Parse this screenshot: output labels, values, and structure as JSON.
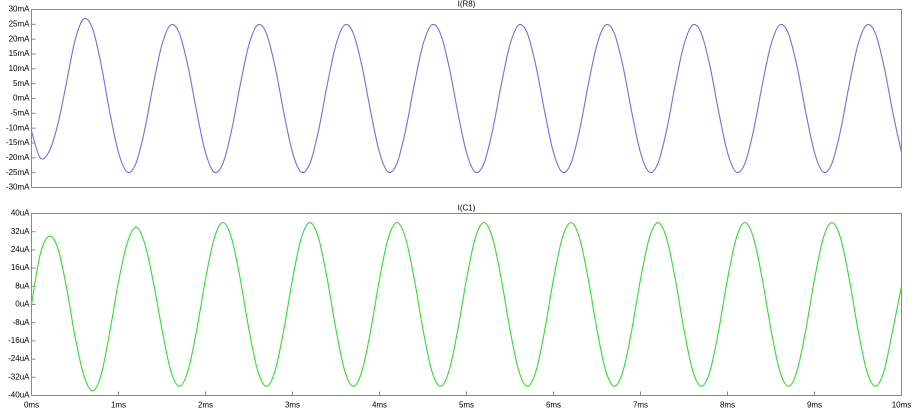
{
  "chart_data": [
    {
      "type": "line",
      "title": "I(R8)",
      "x": [
        0,
        0.1,
        0.2,
        0.3,
        0.4,
        0.5,
        0.6,
        0.7,
        0.8,
        0.9,
        1,
        1.1,
        1.2,
        1.3,
        1.4,
        1.5,
        1.6,
        1.7,
        1.8,
        1.9,
        2,
        2.1,
        2.2,
        2.3,
        2.4,
        2.5,
        2.6,
        2.7,
        2.8,
        2.9,
        3,
        3.1,
        3.2,
        3.3,
        3.4,
        3.5,
        3.6,
        3.7,
        3.8,
        3.9,
        4,
        4.1,
        4.2,
        4.3,
        4.4,
        4.5,
        4.6,
        4.7,
        4.8,
        4.9,
        5,
        5.1,
        5.2,
        5.3,
        5.4,
        5.5,
        5.6,
        5.7,
        5.8,
        5.9,
        6,
        6.1,
        6.2,
        6.3,
        6.4,
        6.5,
        6.6,
        6.7,
        6.8,
        6.9,
        7,
        7.1,
        7.2,
        7.3,
        7.4,
        7.5,
        7.6,
        7.7,
        7.8,
        7.9,
        8,
        8.1,
        8.2,
        8.3,
        8.4,
        8.5,
        8.6,
        8.7,
        8.8,
        8.9,
        9,
        9.1,
        9.2,
        9.3,
        9.4,
        9.5,
        9.6,
        9.7,
        9.8,
        9.9,
        10
      ],
      "series": [
        {
          "name": "I(R8)",
          "color": "#6f6fe8",
          "values": [
            -11,
            -20,
            -18,
            -9,
            5,
            19.6,
            26.8,
            23.7,
            11.5,
            -4.7,
            -18.2,
            -24.8,
            -21.9,
            -10.7,
            4.7,
            18.2,
            24.8,
            21.9,
            10.7,
            -4.7,
            -18.2,
            -24.8,
            -21.9,
            -10.7,
            4.7,
            18.2,
            24.8,
            21.9,
            10.7,
            -4.7,
            -18.2,
            -24.8,
            -21.9,
            -10.7,
            4.7,
            18.2,
            24.8,
            21.9,
            10.7,
            -4.7,
            -18.2,
            -24.8,
            -21.9,
            -10.7,
            4.7,
            18.2,
            24.8,
            21.9,
            10.7,
            -4.7,
            -18.2,
            -24.8,
            -21.9,
            -10.7,
            4.7,
            18.2,
            24.8,
            21.9,
            10.7,
            -4.7,
            -18.2,
            -24.8,
            -21.9,
            -10.7,
            4.7,
            18.2,
            24.8,
            21.9,
            10.7,
            -4.7,
            -18.2,
            -24.8,
            -21.9,
            -10.7,
            4.7,
            18.2,
            24.8,
            21.9,
            10.7,
            -4.7,
            -18.2,
            -24.8,
            -21.9,
            -10.7,
            4.7,
            18.2,
            24.8,
            21.9,
            10.7,
            -4.7,
            -18.2,
            -24.8,
            -21.9,
            -10.7,
            4.7,
            18.2,
            24.8,
            21.9,
            10.7,
            -4.7,
            -18.2
          ]
        }
      ],
      "xlim": [
        0,
        10
      ],
      "ylim": [
        -30,
        30
      ],
      "yticks": [
        {
          "value": 30,
          "label": "30mA"
        },
        {
          "value": 25,
          "label": "25mA"
        },
        {
          "value": 20,
          "label": "20mA"
        },
        {
          "value": 15,
          "label": "15mA"
        },
        {
          "value": 10,
          "label": "10mA"
        },
        {
          "value": 5,
          "label": "5mA"
        },
        {
          "value": 0,
          "label": "0mA"
        },
        {
          "value": -5,
          "label": "-5mA"
        },
        {
          "value": -10,
          "label": "-10mA"
        },
        {
          "value": -15,
          "label": "-15mA"
        },
        {
          "value": -20,
          "label": "-20mA"
        },
        {
          "value": -25,
          "label": "-25mA"
        },
        {
          "value": -30,
          "label": "-30mA"
        }
      ]
    },
    {
      "type": "line",
      "title": "I(C1)",
      "x": [
        0,
        0.1,
        0.2,
        0.3,
        0.4,
        0.5,
        0.6,
        0.7,
        0.8,
        0.9,
        1,
        1.1,
        1.2,
        1.3,
        1.4,
        1.5,
        1.6,
        1.7,
        1.8,
        1.9,
        2,
        2.1,
        2.2,
        2.3,
        2.4,
        2.5,
        2.6,
        2.7,
        2.8,
        2.9,
        3,
        3.1,
        3.2,
        3.3,
        3.4,
        3.5,
        3.6,
        3.7,
        3.8,
        3.9,
        4,
        4.1,
        4.2,
        4.3,
        4.4,
        4.5,
        4.6,
        4.7,
        4.8,
        4.9,
        5,
        5.1,
        5.2,
        5.3,
        5.4,
        5.5,
        5.6,
        5.7,
        5.8,
        5.9,
        6,
        6.1,
        6.2,
        6.3,
        6.4,
        6.5,
        6.6,
        6.7,
        6.8,
        6.9,
        7,
        7.1,
        7.2,
        7.3,
        7.4,
        7.5,
        7.6,
        7.7,
        7.8,
        7.9,
        8,
        8.1,
        8.2,
        8.3,
        8.4,
        8.5,
        8.6,
        8.7,
        8.8,
        8.9,
        9,
        9.1,
        9.2,
        9.3,
        9.4,
        9.5,
        9.6,
        9.7,
        9.8,
        9.9,
        10
      ],
      "series": [
        {
          "name": "I(C1)",
          "color": "#33dd33",
          "values": [
            0,
            22,
            30,
            25,
            8,
            -14,
            -31,
            -38,
            -31,
            -12,
            10,
            27,
            34,
            27,
            10,
            -11,
            -29,
            -36,
            -29,
            -11,
            11.1,
            29.1,
            36,
            29.1,
            11.1,
            -11.1,
            -29.1,
            -36,
            -29.1,
            -11.1,
            11.1,
            29.1,
            36,
            29.1,
            11.1,
            -11.1,
            -29.1,
            -36,
            -29.1,
            -11.1,
            11.1,
            29.1,
            36,
            29.1,
            11.1,
            -11.1,
            -29.1,
            -36,
            -29.1,
            -11.1,
            11.1,
            29.1,
            36,
            29.1,
            11.1,
            -11.1,
            -29.1,
            -36,
            -29.1,
            -11.1,
            11.1,
            29.1,
            36,
            29.1,
            11.1,
            -11.1,
            -29.1,
            -36,
            -29.1,
            -11.1,
            11.1,
            29.1,
            36,
            29.1,
            11.1,
            -11.1,
            -29.1,
            -36,
            -29.1,
            -11.1,
            11.1,
            29.1,
            36,
            29.1,
            11.1,
            -11.1,
            -29.1,
            -36,
            -29.1,
            -11.1,
            11.1,
            29.1,
            36,
            29.1,
            11.1,
            -11.1,
            -29.1,
            -36,
            -29.1,
            -11.1,
            8
          ]
        }
      ],
      "xlim": [
        0,
        10
      ],
      "xticks": [
        {
          "value": 0,
          "label": "0ms"
        },
        {
          "value": 1,
          "label": "1ms"
        },
        {
          "value": 2,
          "label": "2ms"
        },
        {
          "value": 3,
          "label": "3ms"
        },
        {
          "value": 4,
          "label": "4ms"
        },
        {
          "value": 5,
          "label": "5ms"
        },
        {
          "value": 6,
          "label": "6ms"
        },
        {
          "value": 7,
          "label": "7ms"
        },
        {
          "value": 8,
          "label": "8ms"
        },
        {
          "value": 9,
          "label": "9ms"
        },
        {
          "value": 10,
          "label": "10ms"
        }
      ],
      "ylim": [
        -40,
        40
      ],
      "yticks": [
        {
          "value": 40,
          "label": "40uA"
        },
        {
          "value": 32,
          "label": "32uA"
        },
        {
          "value": 24,
          "label": "24uA"
        },
        {
          "value": 16,
          "label": "16uA"
        },
        {
          "value": 8,
          "label": "8uA"
        },
        {
          "value": 0,
          "label": "0uA"
        },
        {
          "value": -8,
          "label": "-8uA"
        },
        {
          "value": -16,
          "label": "-16uA"
        },
        {
          "value": -24,
          "label": "-24uA"
        },
        {
          "value": -32,
          "label": "-32uA"
        },
        {
          "value": -40,
          "label": "-40uA"
        }
      ]
    }
  ]
}
